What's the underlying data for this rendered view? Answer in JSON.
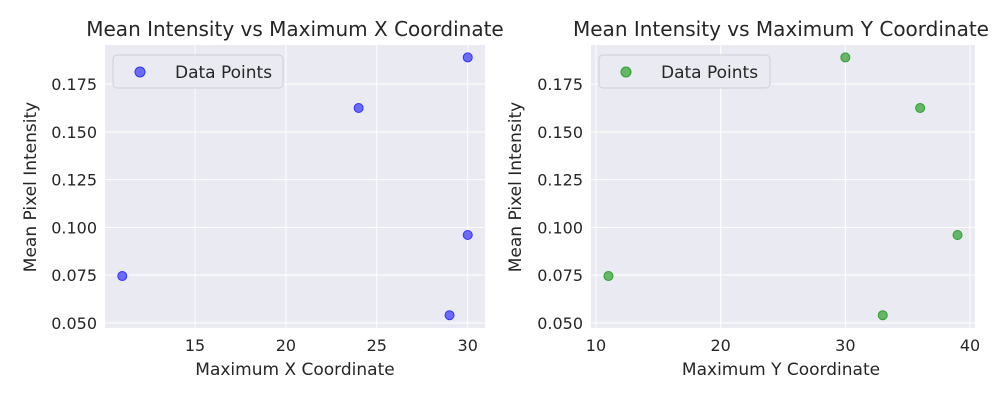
{
  "chart_data": [
    {
      "type": "scatter",
      "title": "Mean Intensity vs Maximum X Coordinate",
      "xlabel": "Maximum X Coordinate",
      "ylabel": "Mean Pixel Intensity",
      "xlim": [
        10.05,
        30.95
      ],
      "ylim": [
        0.0473,
        0.1955
      ],
      "xticks": [
        15,
        20,
        25,
        30
      ],
      "xtick_labels": [
        "15",
        "20",
        "25",
        "30"
      ],
      "yticks": [
        0.05,
        0.075,
        0.1,
        0.125,
        0.15,
        0.175
      ],
      "ytick_labels": [
        "0.050",
        "0.075",
        "0.100",
        "0.125",
        "0.150",
        "0.175"
      ],
      "grid": true,
      "legend_placement": "upper-left",
      "series": [
        {
          "name": "Data Points",
          "color": "#3333ff",
          "x": [
            11,
            24,
            29,
            30,
            30
          ],
          "y": [
            0.0745,
            0.1625,
            0.054,
            0.096,
            0.189
          ]
        }
      ]
    },
    {
      "type": "scatter",
      "title": "Mean Intensity vs Maximum Y Coordinate",
      "xlabel": "Maximum Y Coordinate",
      "ylabel": "Mean Pixel Intensity",
      "xlim": [
        9.6,
        40.4
      ],
      "ylim": [
        0.0473,
        0.1955
      ],
      "xticks": [
        10,
        20,
        30,
        40
      ],
      "xtick_labels": [
        "10",
        "20",
        "30",
        "40"
      ],
      "yticks": [
        0.05,
        0.075,
        0.1,
        0.125,
        0.15,
        0.175
      ],
      "ytick_labels": [
        "0.050",
        "0.075",
        "0.100",
        "0.125",
        "0.150",
        "0.175"
      ],
      "grid": true,
      "legend_placement": "upper-left",
      "series": [
        {
          "name": "Data Points",
          "color": "#2ca02c",
          "x": [
            11,
            30,
            33,
            36,
            39
          ],
          "y": [
            0.0745,
            0.189,
            0.054,
            0.1625,
            0.096
          ]
        }
      ]
    }
  ]
}
